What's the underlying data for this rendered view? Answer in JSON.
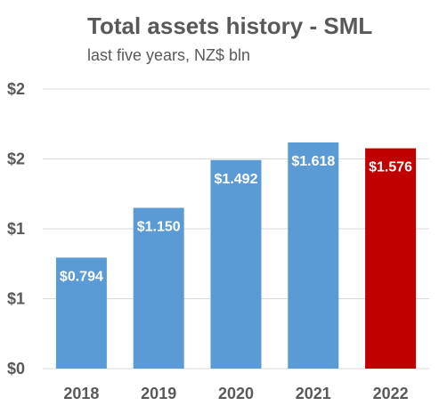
{
  "chart_data": {
    "type": "bar",
    "title": "Total assets history - SML",
    "subtitle": "last five years, NZ$ bln",
    "xlabel": "",
    "ylabel": "",
    "categories": [
      "2018",
      "2019",
      "2020",
      "2021",
      "2022"
    ],
    "values": [
      0.794,
      1.15,
      1.492,
      1.618,
      1.576
    ],
    "data_labels": [
      "$0.794",
      "$1.150",
      "$1.492",
      "$1.618",
      "$1.576"
    ],
    "bar_colors": [
      "#5b9bd5",
      "#5b9bd5",
      "#5b9bd5",
      "#5b9bd5",
      "#c00000"
    ],
    "ylim": [
      0,
      2.0
    ],
    "y_ticks": [
      0,
      0.5,
      1.0,
      1.5,
      2.0
    ],
    "y_tick_labels": [
      "$0",
      "$1",
      "$1",
      "$2",
      "$2"
    ],
    "grid": true,
    "legend": "none"
  }
}
